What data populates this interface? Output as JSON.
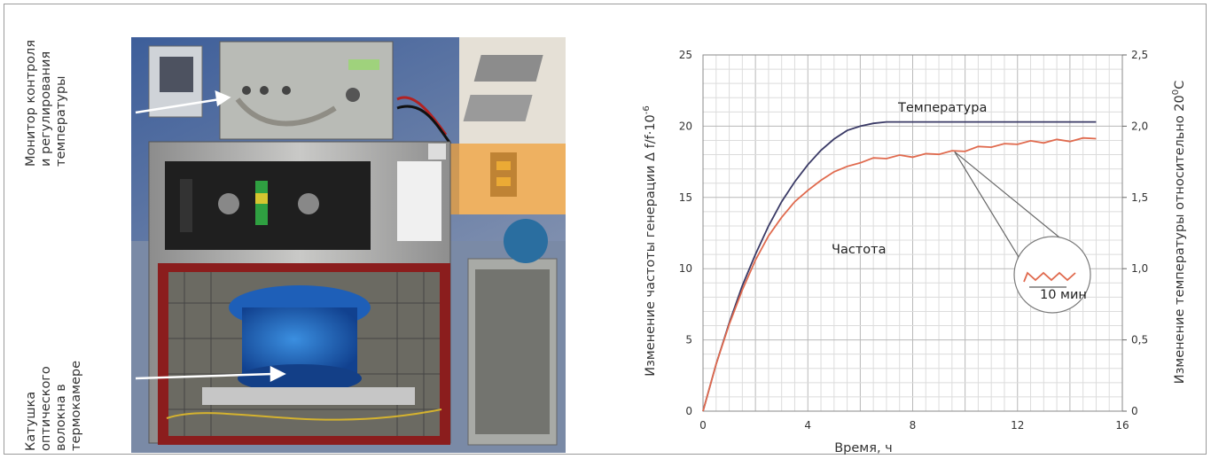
{
  "photo": {
    "label_monitor": [
      "Монитор контроля",
      "и регулирования",
      "температуры"
    ],
    "label_coil": [
      "Катушка",
      "оптического",
      "волокна в",
      "термокамере"
    ]
  },
  "chart_data": {
    "type": "line",
    "xlabel": "Время, ч",
    "ylabel": "Изменение частоты генерации Δ f/f·10",
    "ylabel_sup": "-6",
    "y2label": "Изменение температуры относительно 20",
    "y2label_sup": "0",
    "y2label_tail": "С",
    "xlim": [
      0,
      16
    ],
    "ylim": [
      0,
      25
    ],
    "y2lim": [
      0,
      2.5
    ],
    "x_ticks": [
      "0",
      "4",
      "8",
      "12",
      "16"
    ],
    "y_ticks": [
      "0",
      "5",
      "10",
      "15",
      "20",
      "25"
    ],
    "y2_ticks": [
      "0",
      "0,5",
      "1,0",
      "1,5",
      "2,0",
      "2,5"
    ],
    "grid": true,
    "series": [
      {
        "name": "Температура",
        "axis": "right",
        "color": "#3a3a66",
        "x": [
          0,
          0.5,
          1,
          1.5,
          2,
          2.5,
          3,
          3.5,
          4,
          4.5,
          5,
          5.5,
          6,
          6.5,
          7,
          7.5,
          8,
          9,
          10,
          11,
          12,
          13,
          14,
          15
        ],
        "y": [
          0,
          0.33,
          0.62,
          0.88,
          1.1,
          1.3,
          1.47,
          1.61,
          1.73,
          1.83,
          1.91,
          1.97,
          2.0,
          2.02,
          2.03,
          2.03,
          2.03,
          2.03,
          2.03,
          2.03,
          2.03,
          2.03,
          2.03,
          2.03
        ]
      },
      {
        "name": "Частота",
        "axis": "left",
        "color": "#e06a4e",
        "x": [
          0,
          0.5,
          1,
          1.5,
          2,
          2.5,
          3,
          3.5,
          4,
          4.5,
          5,
          5.5,
          6,
          6.5,
          7,
          7.5,
          8,
          8.5,
          9,
          9.5,
          10,
          10.5,
          11,
          11.5,
          12,
          12.5,
          13,
          13.5,
          14,
          14.5,
          15
        ],
        "y": [
          0,
          3.3,
          6.1,
          8.5,
          10.6,
          12.3,
          13.6,
          14.7,
          15.5,
          16.2,
          16.8,
          17.1,
          17.5,
          17.7,
          17.8,
          17.9,
          17.9,
          18.0,
          18.1,
          18.2,
          18.3,
          18.5,
          18.6,
          18.7,
          18.8,
          18.9,
          18.9,
          19.0,
          19.0,
          19.1,
          19.2
        ]
      }
    ],
    "annotations": {
      "temperature_label": "Температура",
      "frequency_label": "Частота",
      "inset_label": "10 мин"
    }
  }
}
